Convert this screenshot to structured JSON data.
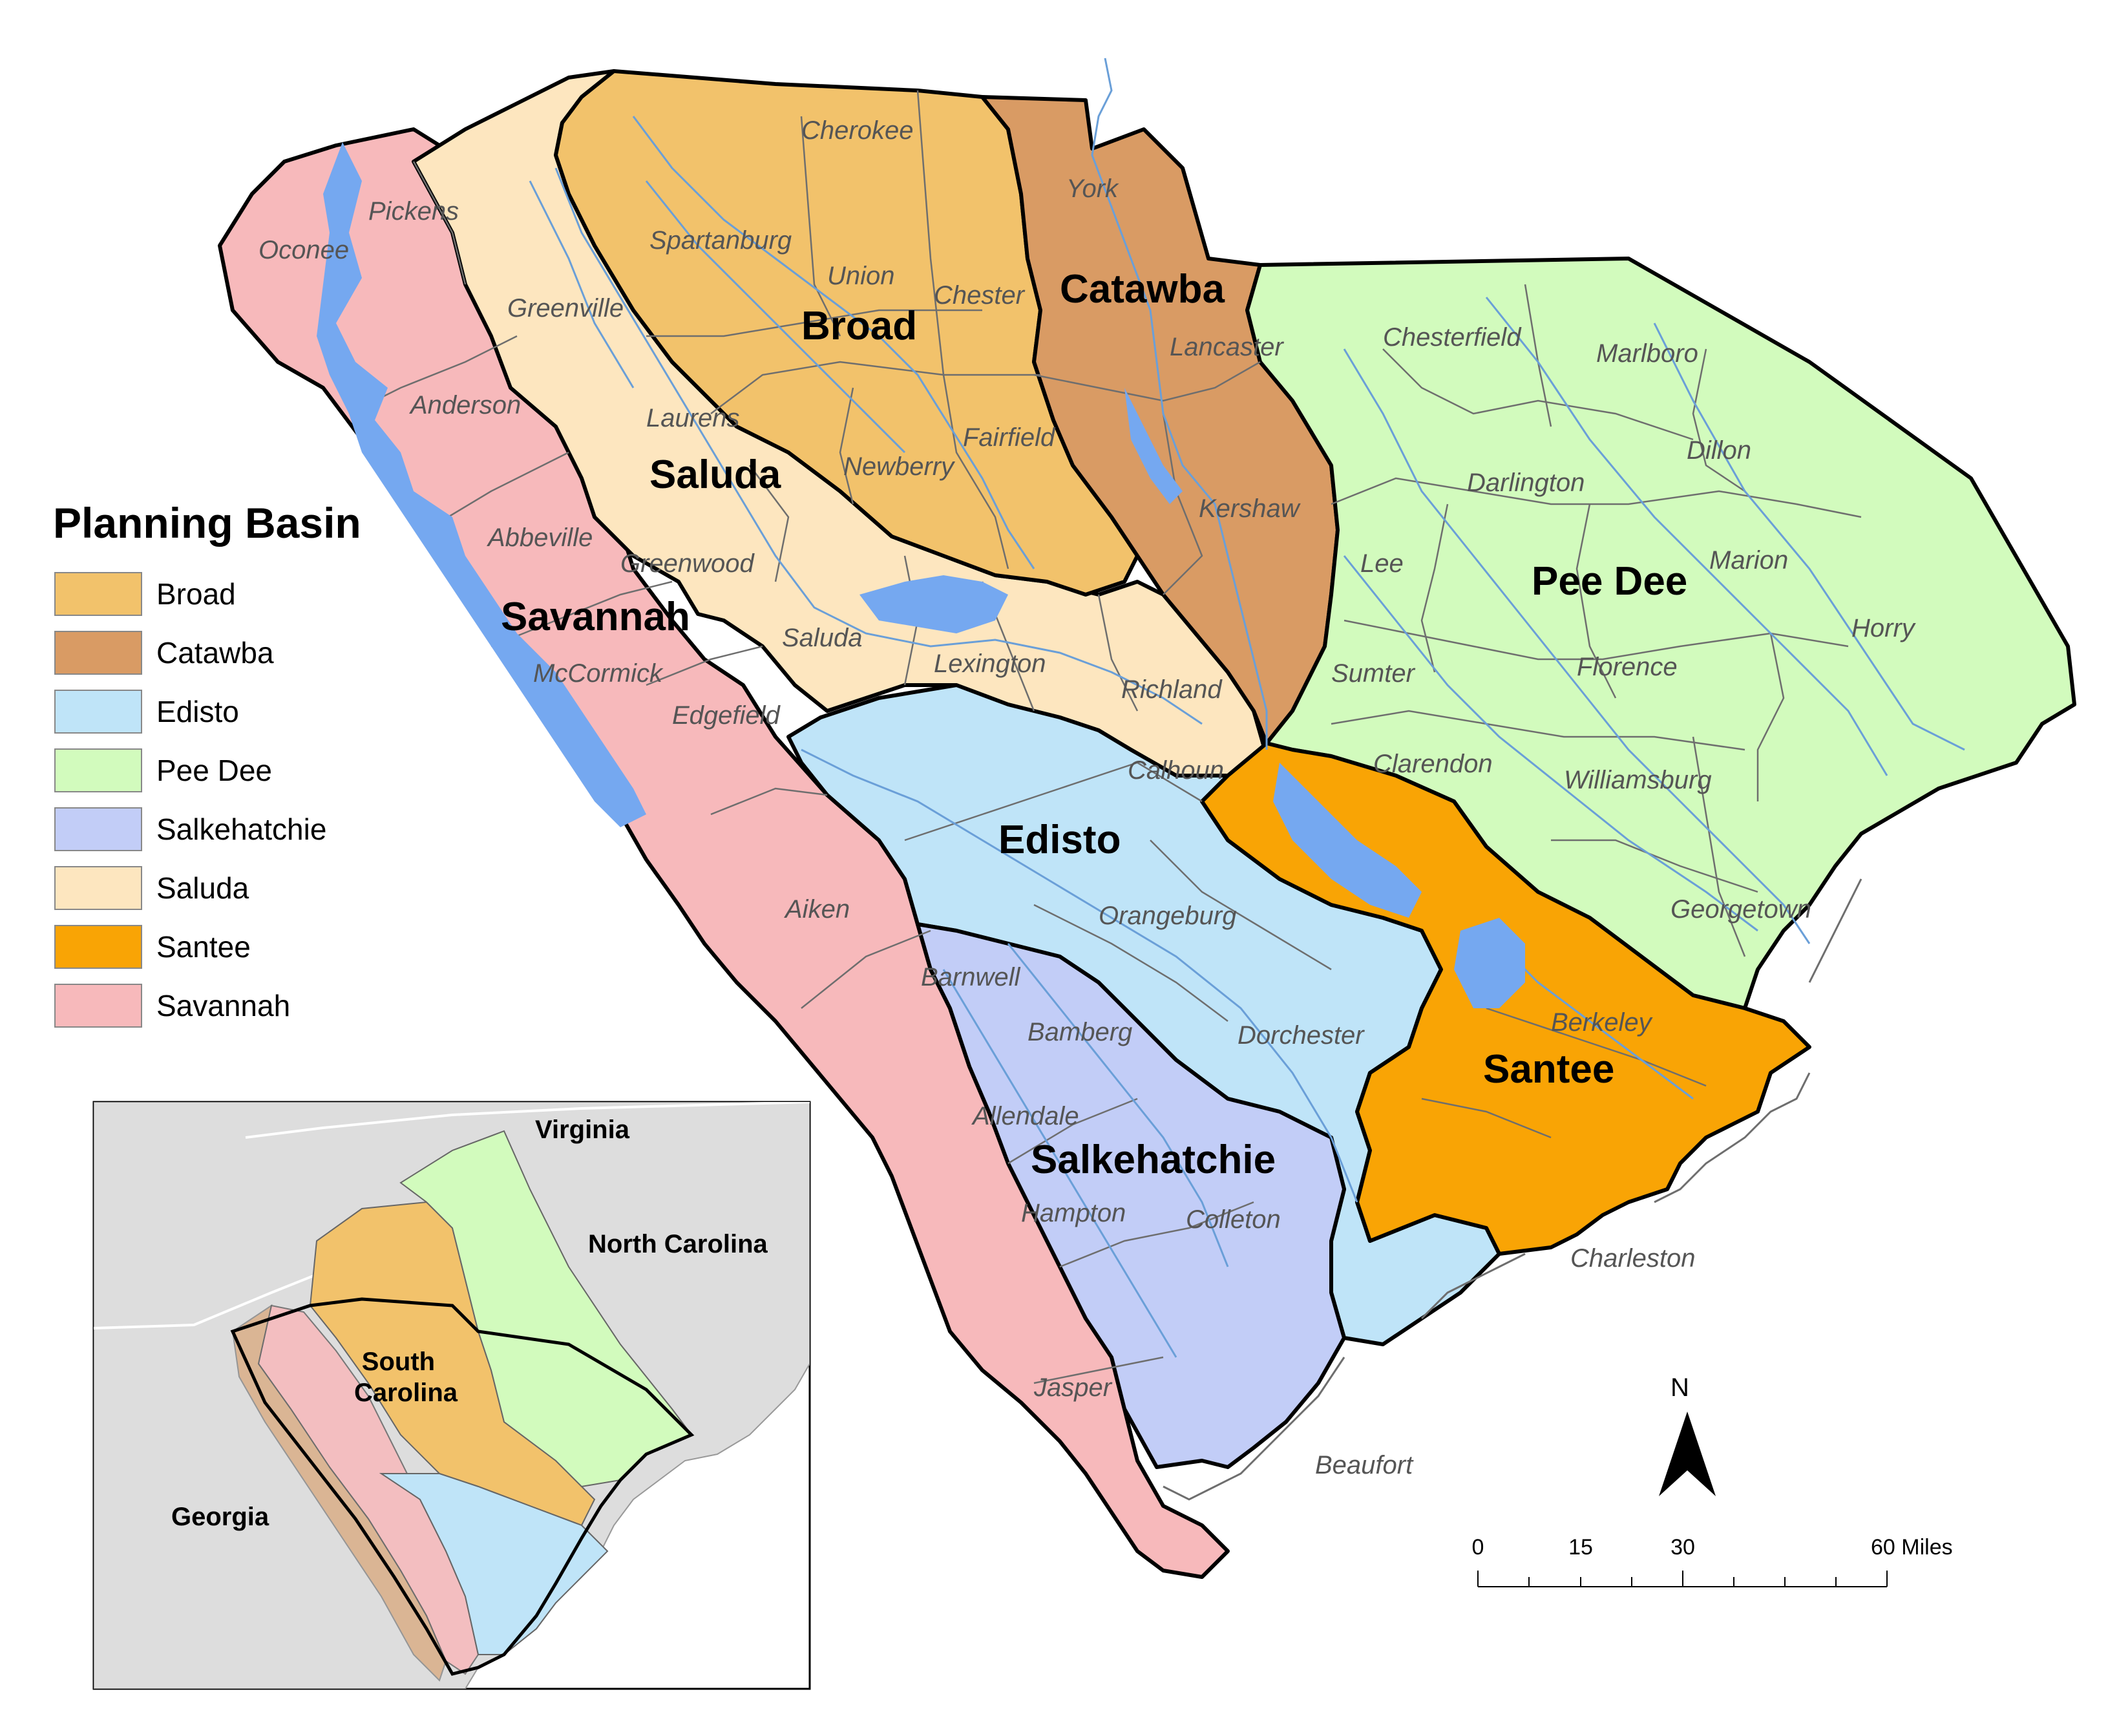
{
  "colors": {
    "broad": "#f2c26b",
    "catawba": "#d99b64",
    "edisto": "#bfe4f8",
    "pee_dee": "#d2fbbd",
    "salkehatchie": "#c2cdf7",
    "saluda": "#fde6bf",
    "santee": "#f9a405",
    "savannah": "#f7b9bb",
    "water": "#75a8f0",
    "inset_land": "#dddddd"
  },
  "legend": {
    "title": "Planning Basin",
    "items": [
      {
        "label": "Broad",
        "color": "#f2c26b"
      },
      {
        "label": "Catawba",
        "color": "#d99b64"
      },
      {
        "label": "Edisto",
        "color": "#bfe4f8"
      },
      {
        "label": "Pee Dee",
        "color": "#d2fbbd"
      },
      {
        "label": "Salkehatchie",
        "color": "#c2cdf7"
      },
      {
        "label": "Saluda",
        "color": "#fde6bf"
      },
      {
        "label": "Santee",
        "color": "#f9a405"
      },
      {
        "label": "Savannah",
        "color": "#f7b9bb"
      }
    ]
  },
  "basins": {
    "broad": "Broad",
    "catawba": "Catawba",
    "saluda": "Saluda",
    "savannah": "Savannah",
    "pee_dee": "Pee Dee",
    "edisto": "Edisto",
    "santee": "Santee",
    "salkehatchie": "Salkehatchie"
  },
  "counties": {
    "pickens": "Pickens",
    "oconee": "Oconee",
    "greenville": "Greenville",
    "anderson": "Anderson",
    "abbeville": "Abbeville",
    "greenwood": "Greenwood",
    "mccormick": "McCormick",
    "edgefield": "Edgefield",
    "aiken": "Aiken",
    "barnwell": "Barnwell",
    "bamberg": "Bamberg",
    "allendale": "Allendale",
    "hampton": "Hampton",
    "jasper": "Jasper",
    "beaufort": "Beaufort",
    "colleton": "Colleton",
    "dorchester": "Dorchester",
    "charleston": "Charleston",
    "berkeley": "Berkeley",
    "orangeburg": "Orangeburg",
    "calhoun": "Calhoun",
    "richland": "Richland",
    "lexington": "Lexington",
    "saluda": "Saluda",
    "laurens": "Laurens",
    "newberry": "Newberry",
    "fairfield": "Fairfield",
    "union": "Union",
    "spartanburg": "Spartanburg",
    "cherokee": "Cherokee",
    "chester": "Chester",
    "york": "York",
    "lancaster": "Lancaster",
    "kershaw": "Kershaw",
    "chesterfield": "Chesterfield",
    "marlboro": "Marlboro",
    "dillon": "Dillon",
    "darlington": "Darlington",
    "lee": "Lee",
    "marion": "Marion",
    "horry": "Horry",
    "sumter": "Sumter",
    "florence": "Florence",
    "clarendon": "Clarendon",
    "williamsburg": "Williamsburg",
    "georgetown": "Georgetown"
  },
  "inset": {
    "virginia": "Virginia",
    "north_carolina": "North Carolina",
    "south_carolina_line1": "South",
    "south_carolina_line2": "Carolina",
    "georgia": "Georgia"
  },
  "north_arrow": {
    "label": "N"
  },
  "scale_bar": {
    "ticks": [
      "0",
      "15",
      "30",
      "60 Miles"
    ]
  }
}
